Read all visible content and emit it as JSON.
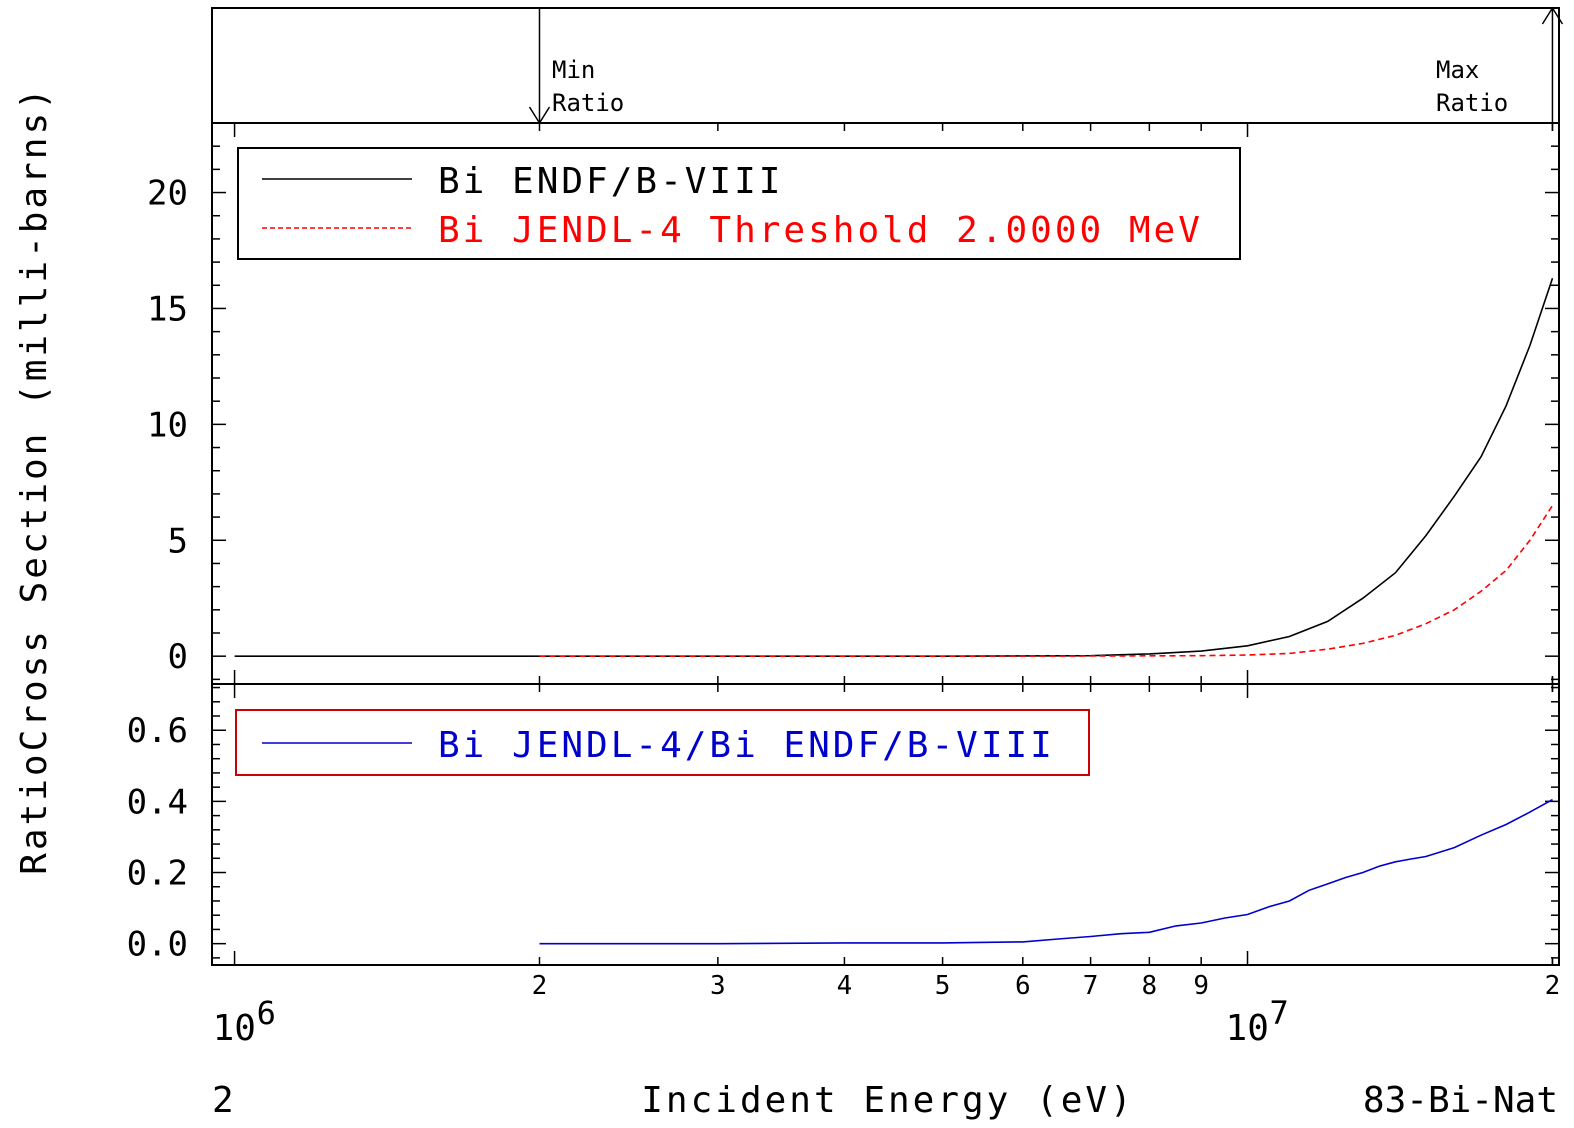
{
  "chart_data": [
    {
      "type": "line",
      "panel": "marker strip",
      "annotations": [
        {
          "label_line1": "Min",
          "label_line2": "Ratio",
          "x": 2000000,
          "arrow": "down"
        },
        {
          "label_line1": "Max",
          "label_line2": "Ratio",
          "x": 20000000,
          "arrow": "up"
        }
      ]
    },
    {
      "type": "line",
      "panel": "cross section",
      "ylabel": "Cross Section (milli-barns)",
      "x_scale": "log",
      "xlim": [
        950000,
        20300000
      ],
      "ylim": [
        -1.2,
        23
      ],
      "yticks": [
        0,
        5,
        10,
        15,
        20
      ],
      "legend": "top-left",
      "series": [
        {
          "name": "Bi ENDF/B-VIII",
          "color": "#000000",
          "dash": "solid",
          "x": [
            1000000,
            2000000,
            5000000,
            7000000,
            8000000,
            9000000,
            10000000,
            11000000,
            12000000,
            13000000,
            14000000,
            15000000,
            16000000,
            17000000,
            18000000,
            19000000,
            20000000
          ],
          "y": [
            0,
            0,
            0,
            0.02,
            0.1,
            0.22,
            0.45,
            0.85,
            1.5,
            2.5,
            3.6,
            5.2,
            6.9,
            8.6,
            10.8,
            13.4,
            16.3
          ]
        },
        {
          "name": "Bi JENDL-4 Threshold 2.0000 MeV",
          "color": "#ff0000",
          "dash": "dashed",
          "x": [
            2000000,
            5000000,
            7000000,
            9000000,
            10000000,
            11000000,
            12000000,
            13000000,
            14000000,
            15000000,
            16000000,
            17000000,
            18000000,
            19000000,
            20000000
          ],
          "y": [
            0,
            0,
            0.01,
            0.02,
            0.05,
            0.12,
            0.3,
            0.55,
            0.9,
            1.4,
            2.0,
            2.8,
            3.7,
            5.0,
            6.5
          ]
        }
      ]
    },
    {
      "type": "line",
      "panel": "ratio",
      "ylabel": "Ratio",
      "x_scale": "log",
      "xlim": [
        950000,
        20300000
      ],
      "ylim": [
        -0.06,
        0.73
      ],
      "yticks": [
        "0.0",
        "0.2",
        "0.4",
        "0.6"
      ],
      "legend": "top-left",
      "series": [
        {
          "name": "Bi JENDL-4/Bi ENDF/B-VIII",
          "color": "#0000cc",
          "dash": "solid",
          "x": [
            2000000,
            3000000,
            4000000,
            5000000,
            6000000,
            6500000,
            7000000,
            7500000,
            8000000,
            8500000,
            9000000,
            9500000,
            10000000,
            10500000,
            11000000,
            11500000,
            12000000,
            12500000,
            13000000,
            13500000,
            14000000,
            14500000,
            15000000,
            16000000,
            17000000,
            18000000,
            19000000,
            20000000
          ],
          "y": [
            0,
            0,
            0.002,
            0.002,
            0.005,
            0.013,
            0.02,
            0.028,
            0.032,
            0.05,
            0.058,
            0.072,
            0.082,
            0.104,
            0.12,
            0.15,
            0.168,
            0.186,
            0.2,
            0.218,
            0.23,
            0.238,
            0.245,
            0.27,
            0.305,
            0.335,
            0.37,
            0.405
          ]
        }
      ]
    }
  ],
  "axes": {
    "ylabel_left": "RatioCross Section (milli-barns)",
    "ylabel_ratio_part": "Ratio",
    "ylabel_cs_part": "Cross Section (milli-barns)",
    "xlabel": "Incident Energy (eV)",
    "x_minor_labels": [
      {
        "label": "2",
        "x": 2000000
      },
      {
        "label": "3",
        "x": 3000000
      },
      {
        "label": "4",
        "x": 4000000
      },
      {
        "label": "5",
        "x": 5000000
      },
      {
        "label": "6",
        "x": 6000000
      },
      {
        "label": "7",
        "x": 7000000
      },
      {
        "label": "8",
        "x": 8000000
      },
      {
        "label": "9",
        "x": 9000000
      },
      {
        "label": "2",
        "x": 20000000
      }
    ],
    "x_decades": [
      {
        "base": "10",
        "exp": "6",
        "x": 1000000
      },
      {
        "base": "10",
        "exp": "7",
        "x": 10000000
      }
    ]
  },
  "footer": {
    "left": "2",
    "right": "83-Bi-Nat"
  }
}
